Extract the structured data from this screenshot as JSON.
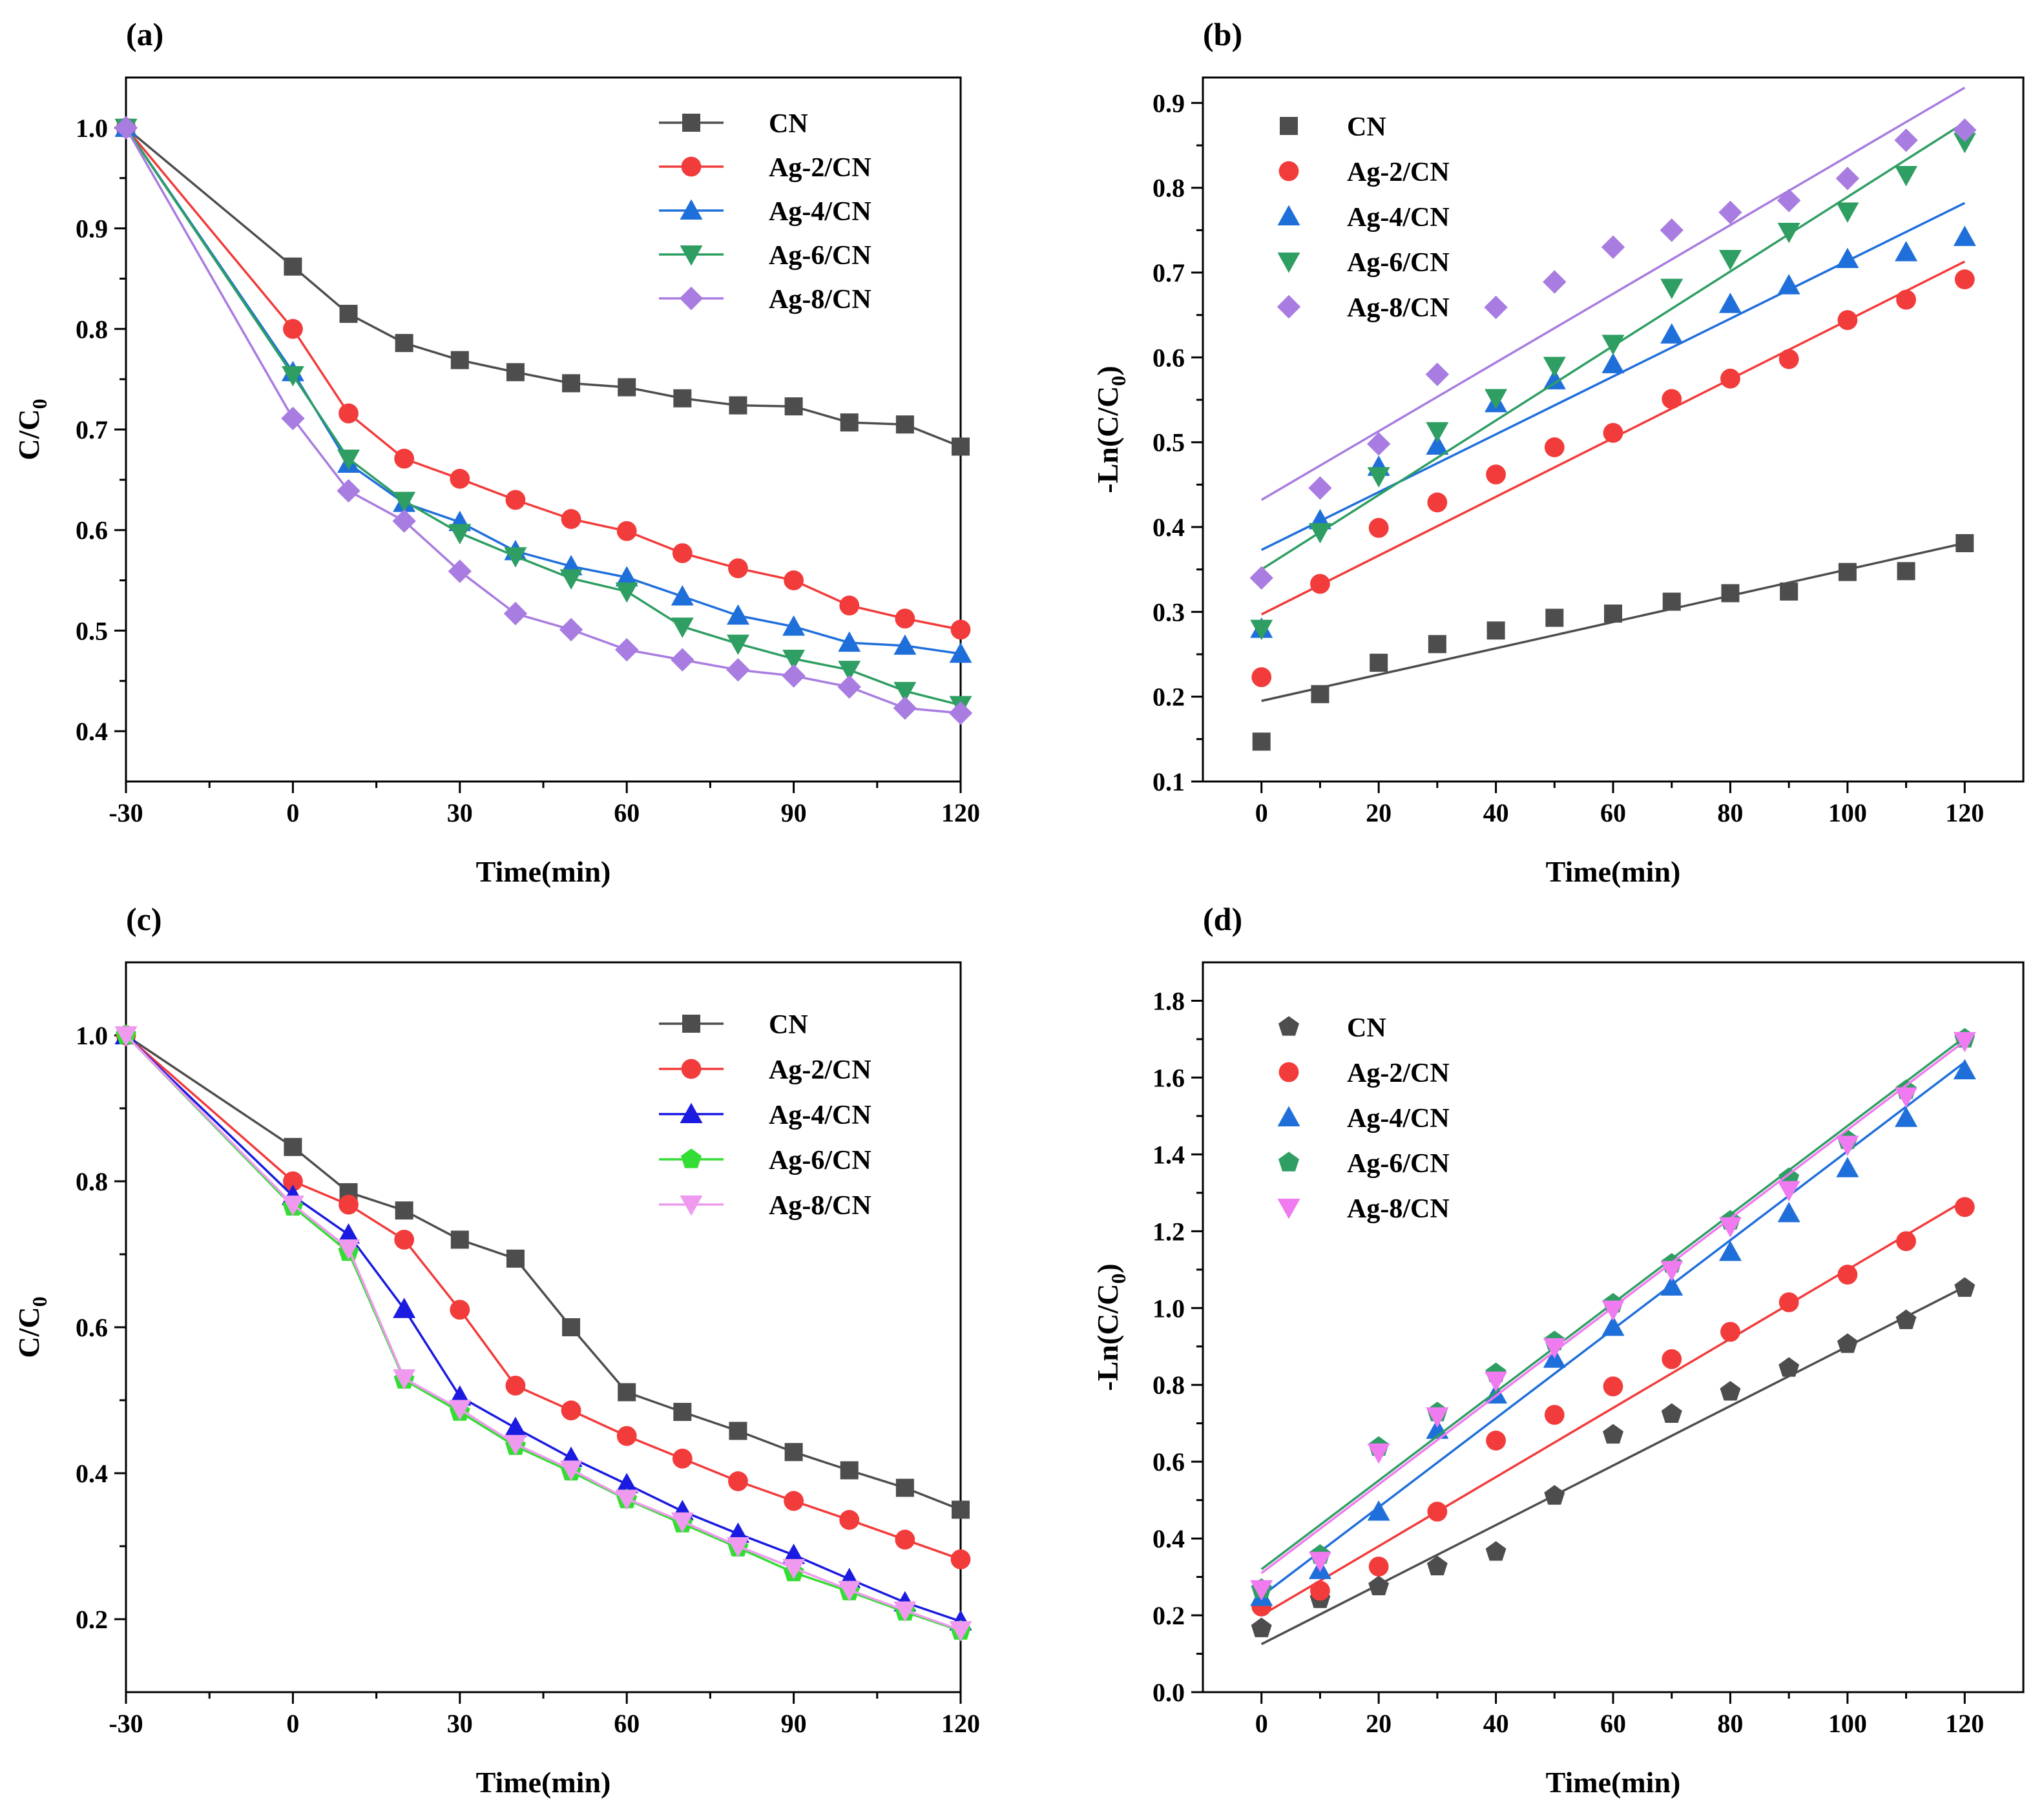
{
  "chart_data": [
    {
      "panel": "(a)",
      "type": "line",
      "xlabel": "Time(min)",
      "ylabel": "C/C",
      "ylabel_sub": "0",
      "xlim": [
        -30,
        120
      ],
      "ylim": [
        0.35,
        1.05
      ],
      "xticks": [
        -30,
        0,
        30,
        60,
        90,
        120
      ],
      "yticks": [
        0.4,
        0.5,
        0.6,
        0.7,
        0.8,
        0.9,
        1.0
      ],
      "ytick_labels": [
        "0.4",
        "0.5",
        "0.6",
        "0.7",
        "0.8",
        "0.9",
        "1.0"
      ],
      "legend_position": "top-right",
      "x": [
        -30,
        0,
        10,
        20,
        30,
        40,
        50,
        60,
        70,
        80,
        90,
        100,
        110,
        120
      ],
      "series": [
        {
          "name": "CN",
          "color": "#4d4d4d",
          "marker": "square",
          "values": [
            1.0,
            0.862,
            0.815,
            0.786,
            0.769,
            0.757,
            0.746,
            0.742,
            0.731,
            0.724,
            0.723,
            0.707,
            0.705,
            0.683
          ]
        },
        {
          "name": "Ag-2/CN",
          "color": "#f23b3b",
          "marker": "circle",
          "values": [
            1.0,
            0.8,
            0.716,
            0.671,
            0.651,
            0.63,
            0.611,
            0.599,
            0.577,
            0.562,
            0.55,
            0.525,
            0.512,
            0.501
          ]
        },
        {
          "name": "Ag-4/CN",
          "color": "#1f6fdb",
          "marker": "triangle-up",
          "values": [
            1.0,
            0.757,
            0.666,
            0.627,
            0.608,
            0.579,
            0.564,
            0.553,
            0.534,
            0.515,
            0.504,
            0.488,
            0.485,
            0.477
          ]
        },
        {
          "name": "Ag-6/CN",
          "color": "#2e9e62",
          "marker": "triangle-down",
          "values": [
            1.0,
            0.754,
            0.671,
            0.629,
            0.597,
            0.574,
            0.552,
            0.539,
            0.504,
            0.487,
            0.472,
            0.461,
            0.44,
            0.426
          ]
        },
        {
          "name": "Ag-8/CN",
          "color": "#a87ce0",
          "marker": "diamond",
          "values": [
            1.0,
            0.711,
            0.639,
            0.609,
            0.559,
            0.517,
            0.501,
            0.481,
            0.471,
            0.461,
            0.455,
            0.444,
            0.423,
            0.418
          ]
        }
      ]
    },
    {
      "panel": "(b)",
      "type": "scatter",
      "xlabel": "Time(min)",
      "ylabel": "-Ln(C/C",
      "ylabel_sub": "0",
      "ylabel_suffix": ")",
      "xlim": [
        -10,
        130
      ],
      "ylim": [
        0.1,
        0.93
      ],
      "xticks": [
        0,
        20,
        40,
        60,
        80,
        100,
        120
      ],
      "yticks": [
        0.1,
        0.2,
        0.3,
        0.4,
        0.5,
        0.6,
        0.7,
        0.8,
        0.9
      ],
      "ytick_labels": [
        "0.1",
        "0.2",
        "0.3",
        "0.4",
        "0.5",
        "0.6",
        "0.7",
        "0.8",
        "0.9"
      ],
      "legend_position": "top-left",
      "x": [
        0,
        10,
        20,
        30,
        40,
        50,
        60,
        70,
        80,
        90,
        100,
        110,
        120
      ],
      "series": [
        {
          "name": "CN",
          "color": "#4d4d4d",
          "marker": "square",
          "values": [
            0.147,
            0.203,
            0.24,
            0.262,
            0.278,
            0.293,
            0.298,
            0.312,
            0.322,
            0.324,
            0.347,
            0.348,
            0.381
          ],
          "fit": [
            0.195,
            0.381
          ]
        },
        {
          "name": "Ag-2/CN",
          "color": "#f23b3b",
          "marker": "circle",
          "values": [
            0.223,
            0.333,
            0.399,
            0.429,
            0.462,
            0.494,
            0.511,
            0.551,
            0.575,
            0.598,
            0.644,
            0.668,
            0.692
          ],
          "fit": [
            0.297,
            0.713
          ]
        },
        {
          "name": "Ag-4/CN",
          "color": "#1f6fdb",
          "marker": "triangle-up",
          "values": [
            0.28,
            0.408,
            0.471,
            0.496,
            0.546,
            0.573,
            0.592,
            0.627,
            0.663,
            0.685,
            0.716,
            0.724,
            0.742
          ],
          "fit": [
            0.373,
            0.782
          ]
        },
        {
          "name": "Ag-6/CN",
          "color": "#2e9e62",
          "marker": "triangle-down",
          "values": [
            0.28,
            0.394,
            0.46,
            0.513,
            0.552,
            0.59,
            0.616,
            0.682,
            0.716,
            0.748,
            0.772,
            0.815,
            0.854
          ],
          "fit": [
            0.35,
            0.877
          ]
        },
        {
          "name": "Ag-8/CN",
          "color": "#a87ce0",
          "marker": "diamond",
          "values": [
            0.34,
            0.446,
            0.498,
            0.58,
            0.659,
            0.689,
            0.73,
            0.75,
            0.771,
            0.785,
            0.811,
            0.856,
            0.868
          ],
          "fit": [
            0.432,
            0.918
          ]
        }
      ]
    },
    {
      "panel": "(c)",
      "type": "line",
      "xlabel": "Time(min)",
      "ylabel": "C/C",
      "ylabel_sub": "0",
      "xlim": [
        -30,
        120
      ],
      "ylim": [
        0.1,
        1.1
      ],
      "xticks": [
        -30,
        0,
        30,
        60,
        90,
        120
      ],
      "yticks": [
        0.2,
        0.4,
        0.6,
        0.8,
        1.0
      ],
      "ytick_labels": [
        "0.2",
        "0.4",
        "0.6",
        "0.8",
        "1.0"
      ],
      "legend_position": "top-right",
      "x": [
        -30,
        0,
        10,
        20,
        30,
        40,
        50,
        60,
        70,
        80,
        90,
        100,
        110,
        120
      ],
      "series": [
        {
          "name": "CN",
          "color": "#4d4d4d",
          "marker": "square",
          "values": [
            1.0,
            0.847,
            0.785,
            0.76,
            0.72,
            0.694,
            0.6,
            0.511,
            0.484,
            0.458,
            0.429,
            0.404,
            0.38,
            0.35
          ]
        },
        {
          "name": "Ag-2/CN",
          "color": "#f23b3b",
          "marker": "circle",
          "values": [
            1.0,
            0.8,
            0.768,
            0.72,
            0.624,
            0.52,
            0.486,
            0.451,
            0.42,
            0.389,
            0.362,
            0.336,
            0.309,
            0.282
          ]
        },
        {
          "name": "Ag-4/CN",
          "color": "#1a1ae0",
          "marker": "triangle-up",
          "values": [
            1.0,
            0.78,
            0.727,
            0.625,
            0.505,
            0.462,
            0.421,
            0.385,
            0.348,
            0.317,
            0.288,
            0.255,
            0.223,
            0.197
          ]
        },
        {
          "name": "Ag-6/CN",
          "color": "#33dd33",
          "marker": "pentagon",
          "values": [
            1.0,
            0.765,
            0.703,
            0.528,
            0.484,
            0.437,
            0.402,
            0.364,
            0.331,
            0.298,
            0.264,
            0.238,
            0.21,
            0.184
          ]
        },
        {
          "name": "Ag-8/CN",
          "color": "#ef9aef",
          "marker": "triangle-down",
          "values": [
            1.0,
            0.768,
            0.708,
            0.53,
            0.488,
            0.44,
            0.405,
            0.365,
            0.334,
            0.3,
            0.27,
            0.24,
            0.212,
            0.185
          ]
        }
      ]
    },
    {
      "panel": "(d)",
      "type": "scatter",
      "xlabel": "Time(min)",
      "ylabel": "-Ln(C/C",
      "ylabel_sub": "0",
      "ylabel_suffix": ")",
      "xlim": [
        -10,
        130
      ],
      "ylim": [
        0.0,
        1.9
      ],
      "xticks": [
        0,
        20,
        40,
        60,
        80,
        100,
        120
      ],
      "yticks": [
        0.0,
        0.2,
        0.4,
        0.6,
        0.8,
        1.0,
        1.2,
        1.4,
        1.6,
        1.8
      ],
      "ytick_labels": [
        "0.0",
        "0.2",
        "0.4",
        "0.6",
        "0.8",
        "1.0",
        "1.2",
        "1.4",
        "1.6",
        "1.8"
      ],
      "legend_position": "top-left",
      "x": [
        0,
        10,
        20,
        30,
        40,
        50,
        60,
        70,
        80,
        90,
        100,
        110,
        120
      ],
      "series": [
        {
          "name": "CN",
          "color": "#4d4d4d",
          "marker": "pentagon",
          "values": [
            0.166,
            0.242,
            0.275,
            0.327,
            0.365,
            0.511,
            0.67,
            0.724,
            0.782,
            0.844,
            0.906,
            0.968,
            1.052
          ],
          "fit": [
            0.125,
            1.055
          ]
        },
        {
          "name": "Ag-2/CN",
          "color": "#f23b3b",
          "marker": "circle",
          "values": [
            0.223,
            0.264,
            0.327,
            0.47,
            0.655,
            0.722,
            0.796,
            0.867,
            0.938,
            1.015,
            1.087,
            1.174,
            1.263
          ],
          "fit": [
            0.2,
            1.28
          ]
        },
        {
          "name": "Ag-4/CN",
          "color": "#1f6fdb",
          "marker": "triangle-up",
          "values": [
            0.248,
            0.318,
            0.47,
            0.683,
            0.775,
            0.868,
            0.951,
            1.056,
            1.146,
            1.247,
            1.364,
            1.495,
            1.619
          ],
          "fit": [
            0.25,
            1.64
          ]
        },
        {
          "name": "Ag-6/CN",
          "color": "#2e9e62",
          "marker": "pentagon",
          "values": [
            0.268,
            0.357,
            0.638,
            0.728,
            0.83,
            0.913,
            1.011,
            1.115,
            1.227,
            1.338,
            1.437,
            1.567,
            1.701
          ],
          "fit": [
            0.32,
            1.705
          ]
        },
        {
          "name": "Ag-8/CN",
          "color": "#f07af0",
          "marker": "triangle-down",
          "values": [
            0.268,
            0.342,
            0.624,
            0.718,
            0.811,
            0.898,
            0.996,
            1.099,
            1.213,
            1.307,
            1.425,
            1.551,
            1.695
          ],
          "fit": [
            0.31,
            1.695
          ]
        }
      ]
    }
  ]
}
